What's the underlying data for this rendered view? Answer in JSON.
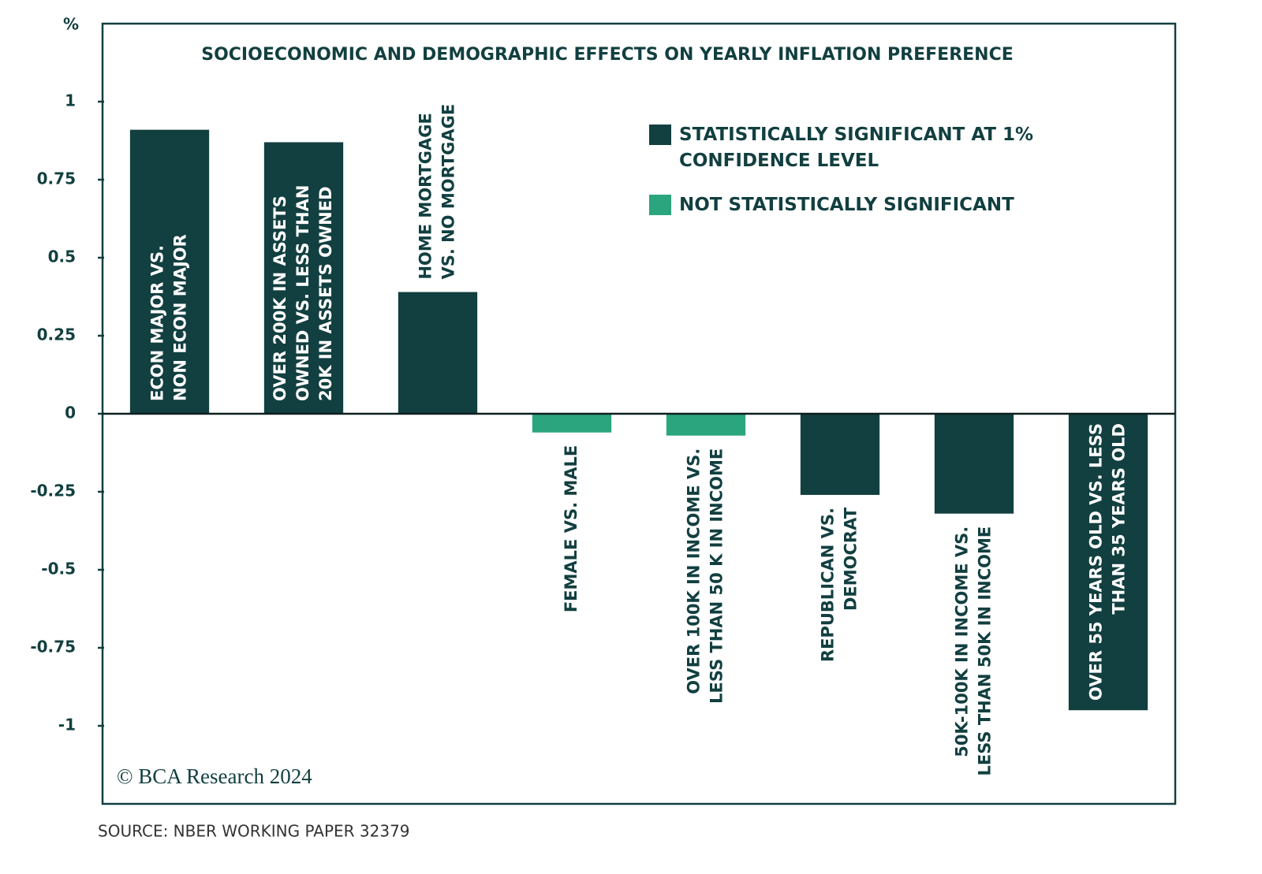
{
  "chart_data": {
    "type": "bar",
    "title": "SOCIOECONOMIC AND DEMOGRAPHIC EFFECTS ON YEARLY INFLATION PREFERENCE",
    "y_unit": "%",
    "categories": [
      [
        "ECON MAJOR VS.",
        "NON ECON MAJOR"
      ],
      [
        "OVER 200K IN ASSETS",
        "OWNED VS. LESS THAN",
        "20K IN ASSETS OWNED"
      ],
      [
        "HOME MORTGAGE",
        "VS. NO MORTGAGE"
      ],
      [
        "FEMALE VS. MALE"
      ],
      [
        "OVER 100K IN INCOME VS.",
        "LESS THAN 50 K IN INCOME"
      ],
      [
        "REPUBLICAN VS.",
        "DEMOCRAT"
      ],
      [
        "50K-100K IN INCOME VS.",
        "LESS THAN 50K IN INCOME"
      ],
      [
        "OVER 55 YEARS OLD VS. LESS",
        "THAN 35 YEARS OLD"
      ]
    ],
    "series": [
      {
        "name": "STATISTICALLY SIGNIFICANT AT 1% CONFIDENCE LEVEL",
        "color": "#123f40",
        "values": [
          0.91,
          0.87,
          0.39,
          null,
          null,
          -0.26,
          -0.32,
          -0.95
        ]
      },
      {
        "name": "NOT STATISTICALLY SIGNIFICANT",
        "color": "#2aa57e",
        "values": [
          null,
          null,
          null,
          -0.06,
          -0.07,
          null,
          null,
          null
        ]
      }
    ],
    "ylim": [
      -1.25,
      1.25
    ],
    "yticks": [
      1,
      0.75,
      0.5,
      0.25,
      0,
      -0.25,
      -0.5,
      -0.75,
      -1
    ],
    "copyright": "© BCA Research 2024",
    "source": "SOURCE: NBER WORKING PAPER 32379"
  }
}
